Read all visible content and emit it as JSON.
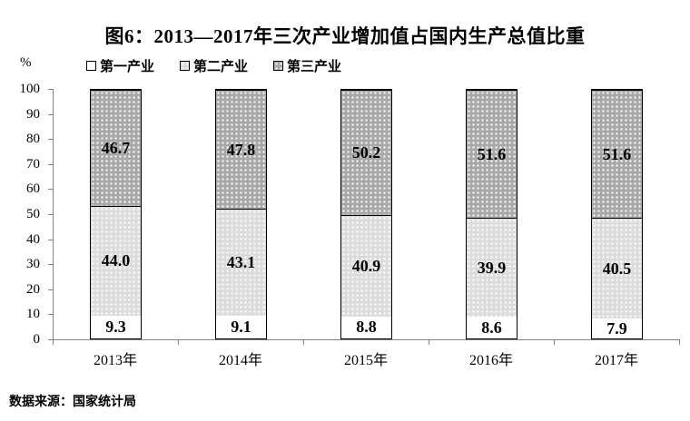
{
  "figure": {
    "title": "图6：2013—2017年三次产业增加值占国内生产总值比重",
    "y_unit_label": "%",
    "source_note": "数据来源：国家统计局"
  },
  "chart_data": {
    "type": "bar",
    "stacked": true,
    "title": "图6：2013—2017年三次产业增加值占国内生产总值比重",
    "xlabel": "",
    "ylabel": "%",
    "ylim": [
      0,
      100
    ],
    "yticks": [
      0,
      10,
      20,
      30,
      40,
      50,
      60,
      70,
      80,
      90,
      100
    ],
    "grid": false,
    "legend_position": "top-left",
    "data_labels": true,
    "axis_color": "#808080",
    "bar_border_color": "#000000",
    "categories": [
      "2013年",
      "2014年",
      "2015年",
      "2016年",
      "2017年"
    ],
    "series": [
      {
        "name": "第一产业",
        "fill": "#ffffff",
        "pattern": "none",
        "values": [
          9.3,
          9.1,
          8.8,
          8.6,
          7.9
        ],
        "labels": [
          "9.3",
          "9.1",
          "8.8",
          "8.6",
          "7.9"
        ]
      },
      {
        "name": "第二产业",
        "fill": "#dcdcdc",
        "pattern": "dots",
        "values": [
          44.0,
          43.1,
          40.9,
          39.9,
          40.5
        ],
        "labels": [
          "44.0",
          "43.1",
          "40.9",
          "39.9",
          "40.5"
        ]
      },
      {
        "name": "第三产业",
        "fill": "#a8a8a8",
        "pattern": "dots",
        "values": [
          46.7,
          47.8,
          50.2,
          51.6,
          51.6
        ],
        "labels": [
          "46.7",
          "47.8",
          "50.2",
          "51.6",
          "51.6"
        ]
      }
    ],
    "source": "数据来源：国家统计局"
  }
}
